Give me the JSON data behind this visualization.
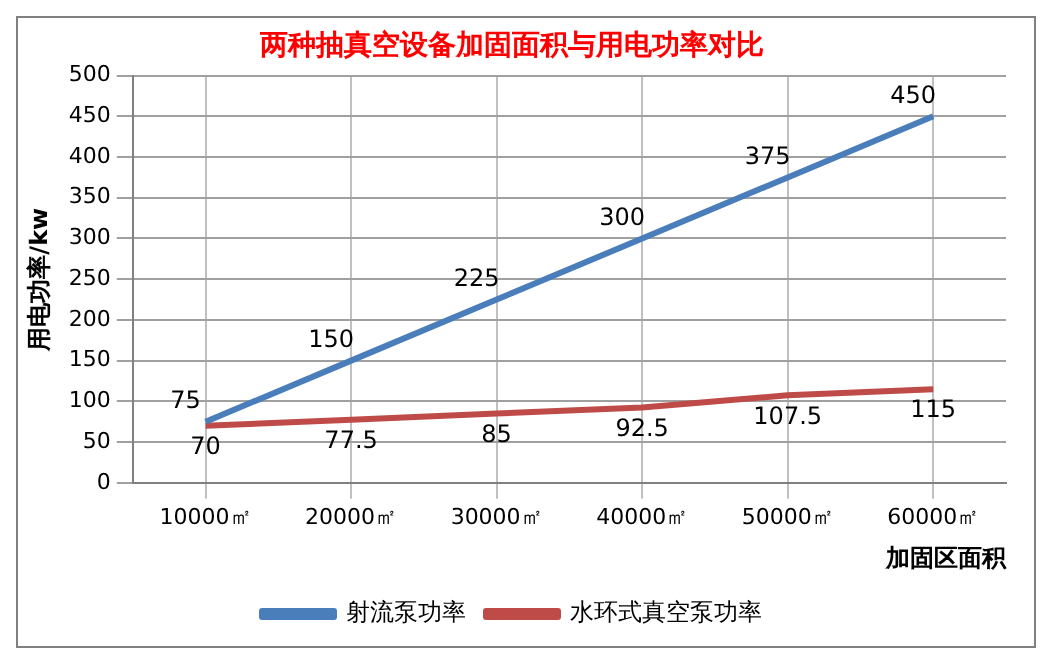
{
  "chart_data": {
    "type": "line",
    "title": "两种抽真空设备加固面积与用电功率对比",
    "xlabel": "加固区面积",
    "ylabel": "用电功率/kw",
    "categories": [
      "10000㎡",
      "20000㎡",
      "30000㎡",
      "40000㎡",
      "50000㎡",
      "60000㎡"
    ],
    "series": [
      {
        "name": "射流泵功率",
        "color": "#4a7ebb",
        "values": [
          75,
          150,
          225,
          300,
          375,
          450
        ]
      },
      {
        "name": "水环式真空泵功率",
        "color": "#be4b48",
        "values": [
          70,
          77.5,
          85,
          92.5,
          107.5,
          115
        ]
      }
    ],
    "ylim": [
      0,
      500
    ],
    "yticks": [
      0,
      50,
      100,
      150,
      200,
      250,
      300,
      350,
      400,
      450,
      500
    ],
    "grid": true,
    "legend": "bottom",
    "data_labels": true,
    "marker": "none",
    "line_style": "solid"
  }
}
